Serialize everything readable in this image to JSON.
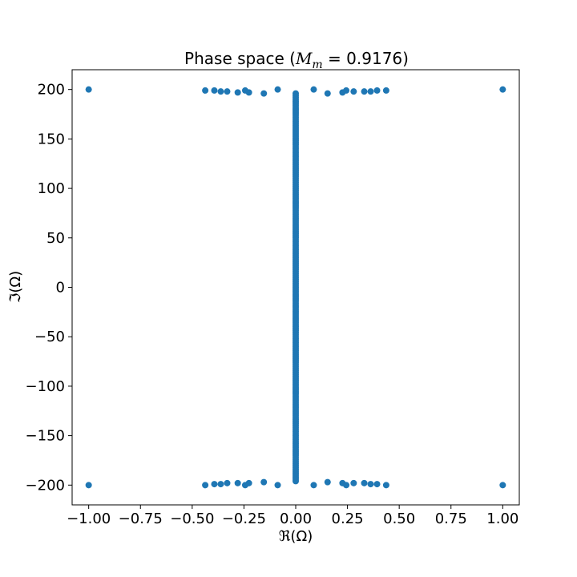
{
  "chart_data": {
    "type": "scatter",
    "title_prefix": "Phase space (",
    "title_math_var": "M",
    "title_math_sub": "m",
    "title_math_rest": " = 0.9176)",
    "xlabel": "ℜ(Ω)",
    "ylabel": "ℑ(Ω)",
    "xlim": [
      -1.08,
      1.08
    ],
    "ylim": [
      -220,
      220
    ],
    "xticks": [
      -1.0,
      -0.75,
      -0.5,
      -0.25,
      0.0,
      0.25,
      0.5,
      0.75,
      1.0
    ],
    "xtick_labels": [
      "−1.00",
      "−0.75",
      "−0.50",
      "−0.25",
      "0.00",
      "0.25",
      "0.50",
      "0.75",
      "1.00"
    ],
    "yticks": [
      -200,
      -150,
      -100,
      -50,
      0,
      50,
      100,
      150,
      200
    ],
    "ytick_labels": [
      "−200",
      "−150",
      "−100",
      "−50",
      "0",
      "50",
      "100",
      "150",
      "200"
    ],
    "grid": false,
    "marker_color": "#1f77b4",
    "outer_points": [
      {
        "x": -1.0,
        "y": 200
      },
      {
        "x": -1.0,
        "y": -200
      },
      {
        "x": 1.0,
        "y": 200
      },
      {
        "x": 1.0,
        "y": -200
      },
      {
        "x": -0.437,
        "y": 199
      },
      {
        "x": -0.393,
        "y": 199
      },
      {
        "x": -0.362,
        "y": 198
      },
      {
        "x": -0.331,
        "y": 198
      },
      {
        "x": -0.28,
        "y": 197
      },
      {
        "x": -0.244,
        "y": 199
      },
      {
        "x": -0.226,
        "y": 197
      },
      {
        "x": -0.154,
        "y": 196
      },
      {
        "x": -0.087,
        "y": 200
      },
      {
        "x": 0.087,
        "y": 200
      },
      {
        "x": 0.154,
        "y": 196
      },
      {
        "x": 0.226,
        "y": 197
      },
      {
        "x": 0.244,
        "y": 199
      },
      {
        "x": 0.28,
        "y": 198
      },
      {
        "x": 0.331,
        "y": 198
      },
      {
        "x": 0.362,
        "y": 198
      },
      {
        "x": 0.393,
        "y": 199
      },
      {
        "x": 0.437,
        "y": 199
      },
      {
        "x": -0.437,
        "y": -200
      },
      {
        "x": -0.393,
        "y": -199
      },
      {
        "x": -0.362,
        "y": -199
      },
      {
        "x": -0.331,
        "y": -198
      },
      {
        "x": -0.28,
        "y": -198
      },
      {
        "x": -0.244,
        "y": -200
      },
      {
        "x": -0.226,
        "y": -198
      },
      {
        "x": -0.154,
        "y": -197
      },
      {
        "x": -0.087,
        "y": -200
      },
      {
        "x": 0.087,
        "y": -200
      },
      {
        "x": 0.154,
        "y": -197
      },
      {
        "x": 0.226,
        "y": -198
      },
      {
        "x": 0.244,
        "y": -200
      },
      {
        "x": 0.28,
        "y": -198
      },
      {
        "x": 0.331,
        "y": -198
      },
      {
        "x": 0.362,
        "y": -199
      },
      {
        "x": 0.393,
        "y": -199
      },
      {
        "x": 0.437,
        "y": -200
      }
    ],
    "central_band": {
      "x": 0.0,
      "y_min": -196,
      "y_max": 196
    }
  }
}
